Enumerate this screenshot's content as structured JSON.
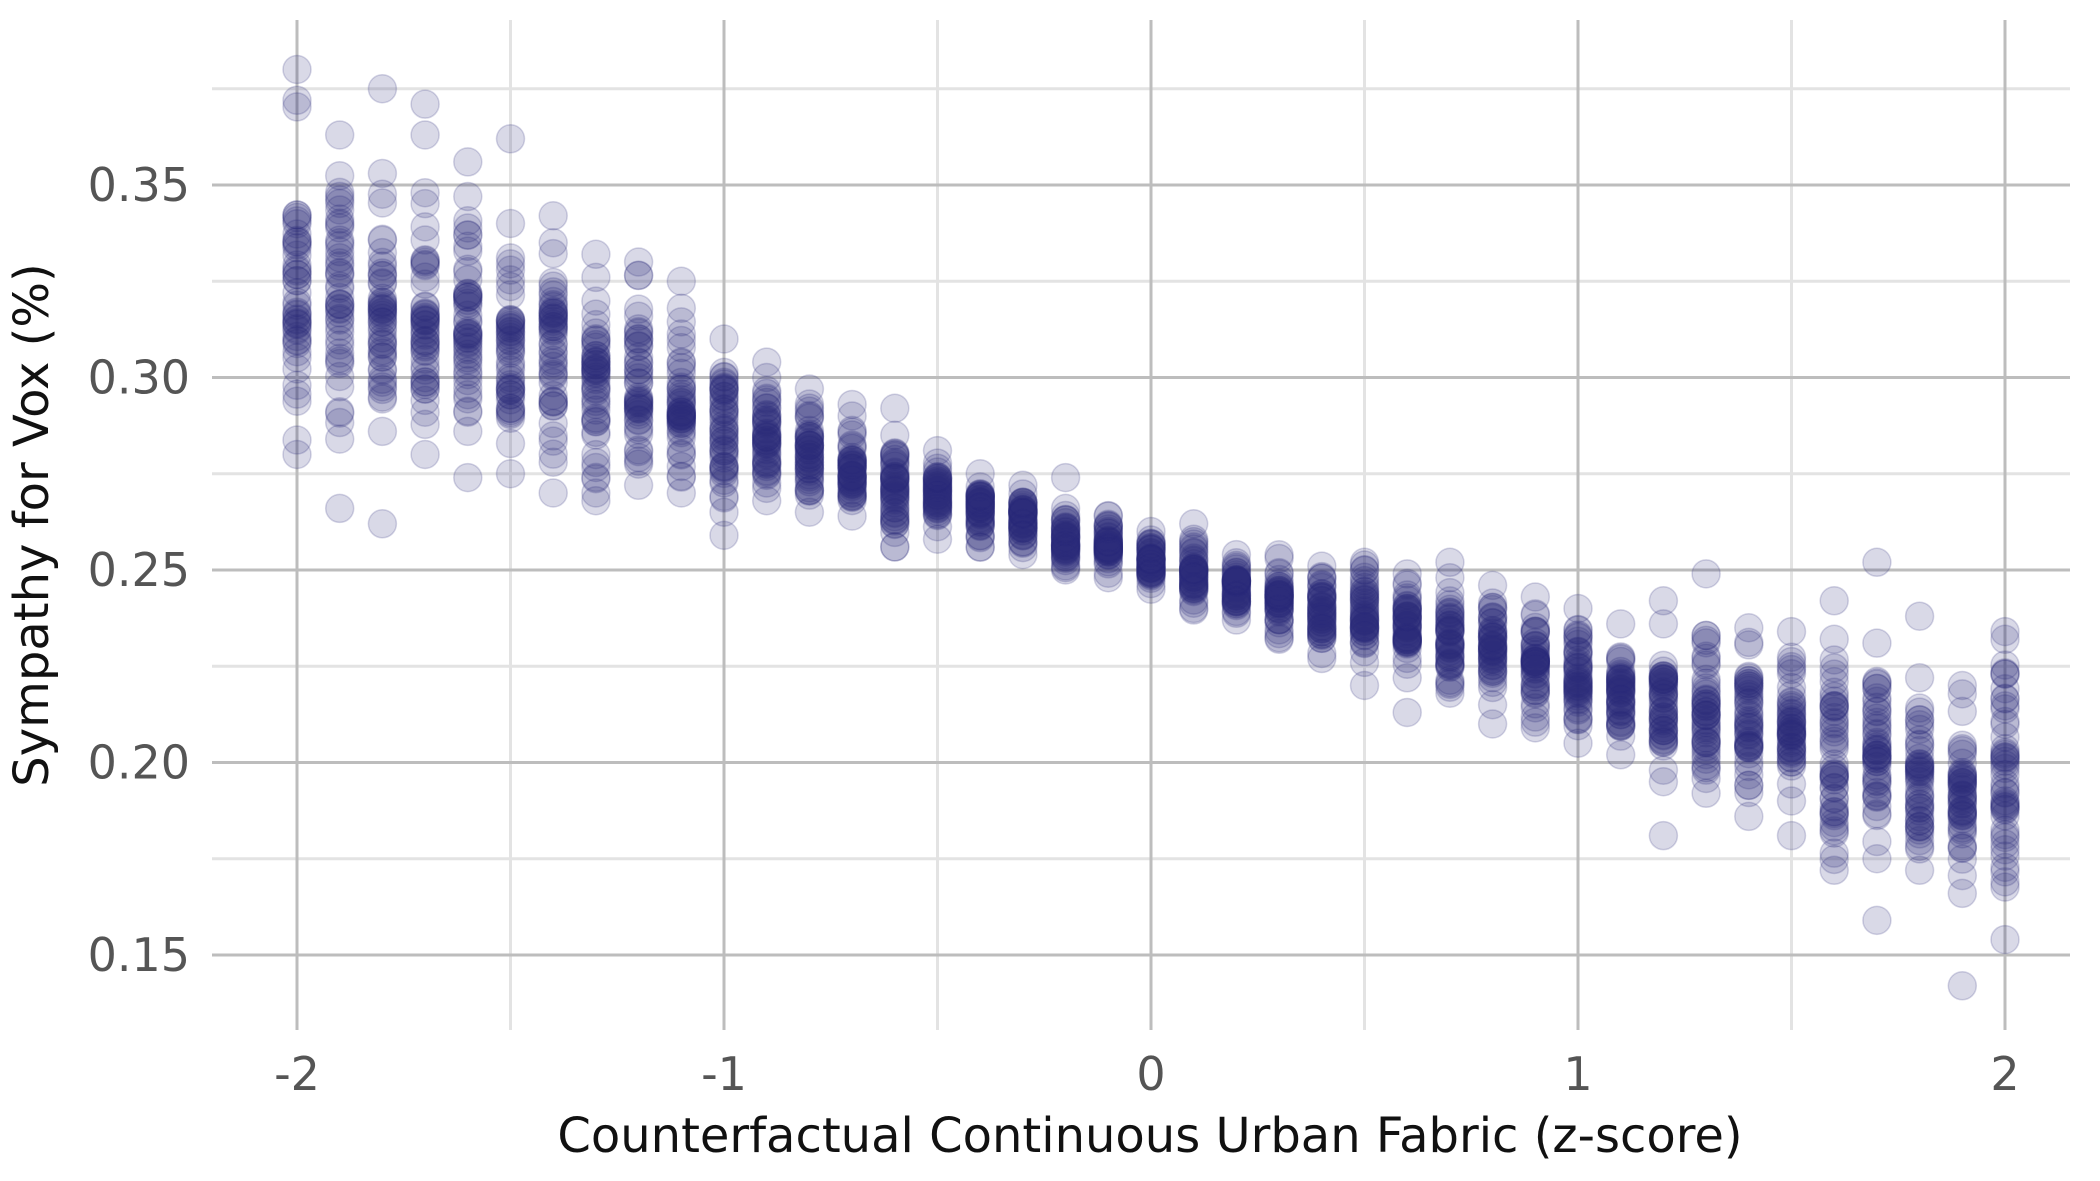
{
  "chart_data": {
    "type": "scatter",
    "title": "",
    "xlabel": "Counterfactual Continuous Urban Fabric (z-score)",
    "ylabel": "Sympathy for Vox (%)",
    "xlim": [
      -2.2,
      2.2
    ],
    "ylim": [
      0.13,
      0.385
    ],
    "x_ticks": [
      -2,
      -1,
      0,
      1,
      2
    ],
    "x_tick_labels": [
      "-2",
      "-1",
      "0",
      "1",
      "2"
    ],
    "y_ticks": [
      0.15,
      0.2,
      0.25,
      0.3,
      0.35
    ],
    "y_tick_labels": [
      "0.15",
      "0.20",
      "0.25",
      "0.30",
      "0.35"
    ],
    "grid": true,
    "point_color": "#2a2b7a",
    "point_opacity": 0.18,
    "series": [
      {
        "x": [
          -2.0,
          -1.9,
          -1.8,
          -1.7,
          -1.6,
          -1.5,
          -1.4,
          -1.3,
          -1.2,
          -1.1,
          -1.0,
          -0.9,
          -0.8,
          -0.7,
          -0.6,
          -0.5,
          -0.4,
          -0.3,
          -0.2,
          -0.1,
          0.0,
          0.1,
          0.2,
          0.3,
          0.4,
          0.5,
          0.6,
          0.7,
          0.8,
          0.9,
          1.0,
          1.1,
          1.2,
          1.3,
          1.4,
          1.5,
          1.6,
          1.7,
          1.8,
          1.9,
          2.0
        ],
        "y_min": [
          0.28,
          0.284,
          0.286,
          0.28,
          0.286,
          0.275,
          0.278,
          0.27,
          0.272,
          0.27,
          0.265,
          0.268,
          0.265,
          0.264,
          0.256,
          0.258,
          0.256,
          0.254,
          0.25,
          0.248,
          0.245,
          0.24,
          0.237,
          0.232,
          0.227,
          0.226,
          0.222,
          0.218,
          0.215,
          0.209,
          0.205,
          0.202,
          0.195,
          0.192,
          0.186,
          0.19,
          0.172,
          0.175,
          0.172,
          0.166,
          0.154
        ],
        "y_max": [
          0.372,
          0.363,
          0.353,
          0.348,
          0.347,
          0.34,
          0.335,
          0.326,
          0.33,
          0.318,
          0.31,
          0.3,
          0.297,
          0.29,
          0.285,
          0.281,
          0.275,
          0.272,
          0.266,
          0.264,
          0.26,
          0.258,
          0.254,
          0.253,
          0.251,
          0.252,
          0.249,
          0.248,
          0.246,
          0.243,
          0.24,
          0.236,
          0.236,
          0.233,
          0.235,
          0.234,
          0.232,
          0.231,
          0.222,
          0.22,
          0.232
        ],
        "outliers": [
          [
            -2.0,
            0.38
          ],
          [
            -1.9,
            0.266
          ],
          [
            -1.8,
            0.375
          ],
          [
            -1.8,
            0.262
          ],
          [
            -1.7,
            0.371
          ],
          [
            -1.7,
            0.363
          ],
          [
            -1.6,
            0.356
          ],
          [
            -1.6,
            0.274
          ],
          [
            -1.5,
            0.362
          ],
          [
            -1.4,
            0.342
          ],
          [
            -1.4,
            0.27
          ],
          [
            -1.3,
            0.332
          ],
          [
            -1.3,
            0.268
          ],
          [
            -1.1,
            0.325
          ],
          [
            -1.0,
            0.259
          ],
          [
            -0.9,
            0.304
          ],
          [
            -0.7,
            0.293
          ],
          [
            -0.6,
            0.292
          ],
          [
            -0.2,
            0.274
          ],
          [
            0.1,
            0.262
          ],
          [
            0.5,
            0.22
          ],
          [
            0.6,
            0.213
          ],
          [
            0.7,
            0.252
          ],
          [
            0.8,
            0.21
          ],
          [
            1.2,
            0.242
          ],
          [
            1.2,
            0.181
          ],
          [
            1.3,
            0.249
          ],
          [
            1.5,
            0.181
          ],
          [
            1.6,
            0.242
          ],
          [
            1.7,
            0.252
          ],
          [
            1.7,
            0.159
          ],
          [
            1.8,
            0.238
          ],
          [
            1.9,
            0.142
          ],
          [
            2.0,
            0.234
          ]
        ]
      }
    ]
  }
}
